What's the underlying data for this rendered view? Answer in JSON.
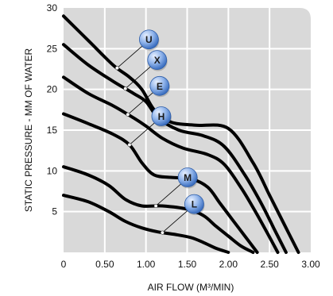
{
  "chart_data": {
    "type": "line",
    "title": "",
    "xlabel": "AIR FLOW (M³/MIN)",
    "ylabel": "STATIC PRESSURE - MM OF WATER",
    "xlim": [
      0,
      3.0
    ],
    "ylim": [
      0,
      30
    ],
    "x_ticks": [
      "0",
      "0.50",
      "1.00",
      "1.50",
      "2.00",
      "2.50",
      "3.00"
    ],
    "y_ticks": [
      "5",
      "10",
      "15",
      "20",
      "25",
      "30"
    ],
    "grid": true,
    "colors": {
      "plot_background": "#d9d9d9",
      "grid": "#ffffff",
      "curve": "#000000",
      "badge_fill": "#5d8fd6",
      "badge_highlight": "#e8f0ff"
    },
    "series": [
      {
        "name": "U",
        "x": [
          0,
          0.3,
          0.6,
          0.8,
          0.95,
          1.1,
          1.3,
          1.6,
          2.0,
          2.3,
          2.5,
          2.7,
          2.85
        ],
        "y": [
          29,
          26,
          23,
          21.5,
          20,
          17.5,
          16,
          15.6,
          15.2,
          11,
          7,
          3,
          0
        ]
      },
      {
        "name": "X",
        "x": [
          0,
          0.3,
          0.6,
          0.85,
          1.0,
          1.15,
          1.4,
          1.7,
          1.95,
          2.2,
          2.4,
          2.55,
          2.7
        ],
        "y": [
          25.5,
          23,
          21,
          19.5,
          18.5,
          16.5,
          15,
          14.3,
          13,
          9.5,
          6,
          3,
          0
        ]
      },
      {
        "name": "E",
        "x": [
          0,
          0.3,
          0.6,
          0.85,
          1.0,
          1.2,
          1.45,
          1.75,
          1.95,
          2.15,
          2.3,
          2.45,
          2.6
        ],
        "y": [
          21.5,
          19.5,
          18,
          16.5,
          15.5,
          14,
          12.8,
          12,
          10.8,
          8,
          5.5,
          2.8,
          0
        ]
      },
      {
        "name": "H",
        "x": [
          0,
          0.3,
          0.6,
          0.8,
          0.95,
          1.1,
          1.3,
          1.55,
          1.75,
          1.9,
          2.05,
          2.2,
          2.35
        ],
        "y": [
          17,
          15.8,
          14.5,
          13.2,
          11,
          9.5,
          9.2,
          9.0,
          8,
          6,
          4,
          2,
          0
        ]
      },
      {
        "name": "M",
        "x": [
          0,
          0.3,
          0.55,
          0.75,
          0.95,
          1.2,
          1.5,
          1.7,
          1.85,
          2.0,
          2.15,
          2.3
        ],
        "y": [
          10.5,
          9.5,
          8.2,
          6.5,
          5.7,
          5.7,
          5.3,
          4.5,
          3.2,
          2,
          0.8,
          0
        ]
      },
      {
        "name": "L",
        "x": [
          0,
          0.3,
          0.55,
          0.75,
          0.95,
          1.15,
          1.35,
          1.55,
          1.7,
          1.85,
          2.0
        ],
        "y": [
          7,
          6.2,
          5,
          3.8,
          3,
          2.5,
          2.2,
          1.8,
          1.2,
          0.5,
          0
        ]
      }
    ],
    "callouts": [
      {
        "label": "U",
        "series": "U",
        "at_x": 0.65
      },
      {
        "label": "X",
        "series": "X",
        "at_x": 0.75
      },
      {
        "label": "E",
        "series": "E",
        "at_x": 0.78
      },
      {
        "label": "H",
        "series": "H",
        "at_x": 0.8
      },
      {
        "label": "M",
        "series": "M",
        "at_x": 1.12
      },
      {
        "label": "L",
        "series": "L",
        "at_x": 1.2
      }
    ]
  }
}
